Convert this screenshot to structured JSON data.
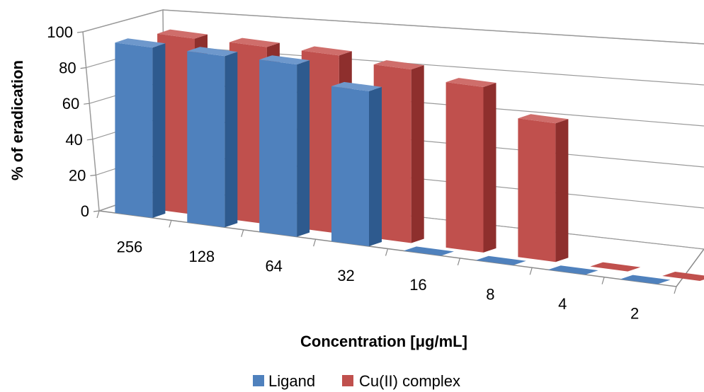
{
  "chart_data": {
    "type": "bar",
    "style": "3d-clustered-column",
    "title": "",
    "xlabel": "Concentration [μg/mL]",
    "ylabel": "% of eradication",
    "categories": [
      "256",
      "128",
      "64",
      "32",
      "16",
      "8",
      "4",
      "2"
    ],
    "series": [
      {
        "name": "Ligand",
        "values": [
          95,
          95,
          95,
          85,
          0,
          0,
          0,
          0
        ],
        "color": "#4F81BD",
        "side_color": "#2E5A8E",
        "top_color": "#6E98CC"
      },
      {
        "name": "Cu(II) complex",
        "values": [
          98,
          98,
          98,
          95,
          90,
          75,
          0,
          0
        ],
        "color": "#C0504D",
        "side_color": "#8E2F2D",
        "top_color": "#CF6E6B"
      }
    ],
    "ylim": [
      0,
      100
    ],
    "yticks": [
      0,
      20,
      40,
      60,
      80,
      100
    ],
    "grid": true,
    "legend_position": "bottom"
  }
}
